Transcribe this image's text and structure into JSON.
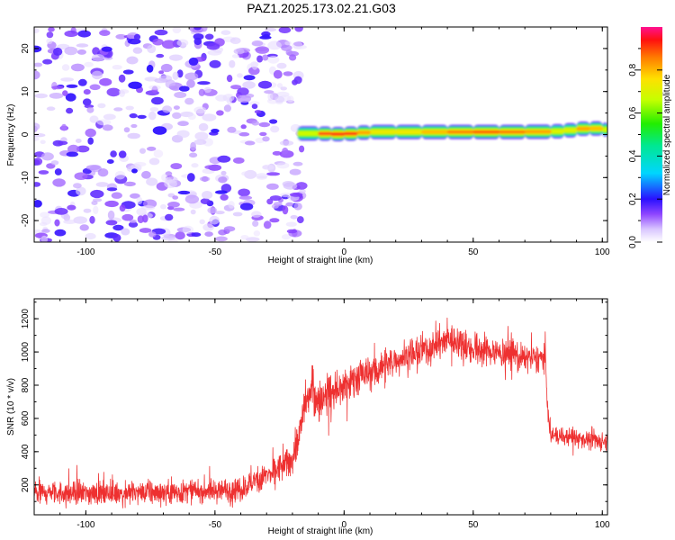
{
  "title": "PAZ1.2025.173.02.21.G03",
  "chart_data": [
    {
      "type": "heatmap",
      "xlabel": "Height of straight line (km)",
      "ylabel": "Frequency (Hz)",
      "xlim": [
        -120,
        102
      ],
      "ylim": [
        -25,
        25
      ],
      "xticks": [
        -100,
        -50,
        0,
        50,
        100
      ],
      "yticks": [
        -20,
        -10,
        0,
        10,
        20
      ],
      "grid": false,
      "colorbar": {
        "label": "Normalized spectral amplitude",
        "range": [
          0,
          1
        ],
        "ticks": [
          "0.0",
          "0.2",
          "0.4",
          "0.6",
          "0.8"
        ],
        "tick_values": [
          0,
          0.2,
          0.4,
          0.6,
          0.8
        ]
      },
      "noise_region": {
        "x_range": [
          -120,
          -18
        ],
        "y_range": [
          -25,
          25
        ],
        "amplitude_range": [
          0.0,
          0.2
        ]
      },
      "signal_ridge": {
        "x": [
          -18,
          -10,
          -5,
          0,
          5,
          10,
          20,
          30,
          40,
          50,
          60,
          70,
          80,
          85,
          90,
          95,
          100,
          102
        ],
        "frequency": [
          0.2,
          0.3,
          0.1,
          0.1,
          0.3,
          0.6,
          0.6,
          0.6,
          0.6,
          0.6,
          0.6,
          0.6,
          0.7,
          0.8,
          1.2,
          1.5,
          1.3,
          1.0
        ],
        "amplitude": [
          0.5,
          0.85,
          0.95,
          0.95,
          0.9,
          0.75,
          0.8,
          0.78,
          0.82,
          0.9,
          0.88,
          0.85,
          0.8,
          0.6,
          0.8,
          0.85,
          0.75,
          0.6
        ]
      }
    },
    {
      "type": "line",
      "xlabel": "Height of straight line (km)",
      "ylabel": "SNR (10 * v/v)",
      "xlim": [
        -120,
        102
      ],
      "ylim": [
        20,
        1320
      ],
      "xticks": [
        -100,
        -50,
        0,
        50,
        100
      ],
      "yticks": [
        200,
        400,
        600,
        800,
        1000,
        1200
      ],
      "grid": false,
      "series": [
        {
          "color": "#ee3030",
          "x": [
            -120,
            -110,
            -100,
            -90,
            -80,
            -70,
            -60,
            -50,
            -45,
            -40,
            -35,
            -30,
            -25,
            -20,
            -17,
            -15,
            -12,
            -10,
            -5,
            0,
            5,
            10,
            15,
            20,
            25,
            30,
            35,
            40,
            45,
            50,
            55,
            60,
            65,
            70,
            75,
            78,
            79,
            80,
            85,
            90,
            95,
            100,
            102
          ],
          "y": [
            150,
            150,
            150,
            150,
            150,
            155,
            160,
            170,
            170,
            180,
            220,
            260,
            300,
            350,
            520,
            700,
            790,
            700,
            760,
            780,
            850,
            870,
            920,
            960,
            980,
            1000,
            1040,
            1080,
            1060,
            1020,
            1010,
            990,
            1000,
            960,
            960,
            960,
            620,
            500,
            490,
            480,
            470,
            460,
            460
          ],
          "noise_amplitude": [
            90,
            90,
            90,
            90,
            90,
            90,
            90,
            90,
            90,
            95,
            100,
            110,
            120,
            130,
            150,
            160,
            170,
            160,
            160,
            150,
            150,
            140,
            140,
            130,
            130,
            130,
            130,
            130,
            130,
            120,
            120,
            120,
            110,
            110,
            110,
            110,
            80,
            70,
            70,
            70,
            70,
            70,
            70
          ]
        }
      ]
    }
  ]
}
